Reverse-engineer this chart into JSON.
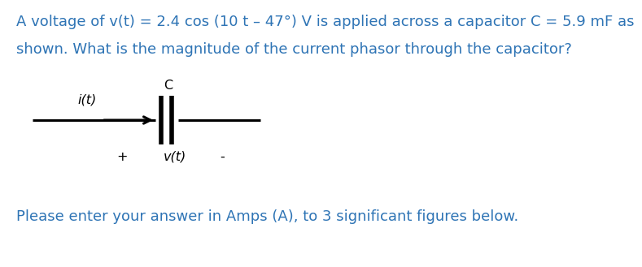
{
  "title_line1": "A voltage of v(t) = 2.4 cos (10 t – 47°) V is applied across a capacitor C = 5.9 mF as",
  "title_line2": "shown. What is the magnitude of the current phasor through the capacitor?",
  "footer": "Please enter your answer in Amps (A), to 3 significant figures below.",
  "label_it": "i(t)",
  "label_C": "C",
  "label_vt": "v(t)",
  "label_plus": "+",
  "label_minus": "-",
  "text_color": "#2E74B5",
  "circuit_color": "#000000",
  "bg_color": "#ffffff",
  "font_size_body": 13.0,
  "font_size_circuit": 11.5
}
